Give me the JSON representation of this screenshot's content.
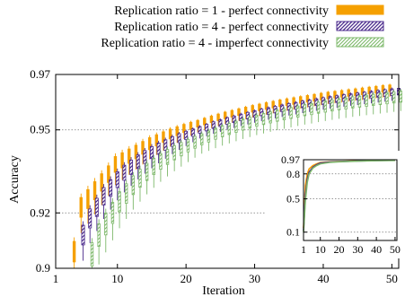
{
  "chart_data": [
    {
      "id": "main",
      "type": "box",
      "xlabel": "Iteration",
      "ylabel": "Accuracy",
      "xlim": [
        1,
        51
      ],
      "ylim": [
        0.9,
        0.97
      ],
      "xticks": [
        1,
        10,
        20,
        30,
        40,
        50
      ],
      "yticks": [
        0.9,
        0.92,
        0.95,
        0.97
      ],
      "ytick_labels": [
        "0.9",
        "0.92",
        "0.95",
        "0.97"
      ],
      "grid": "horizontal-dashed",
      "legend": "top-outside",
      "series": [
        {
          "name": "Replication ratio = 1 - perfect connectivity",
          "color": "#F5A000",
          "pattern": "solid",
          "x": [
            4,
            5,
            6,
            7,
            8,
            9,
            10,
            11,
            12,
            13,
            14,
            15,
            16,
            17,
            18,
            19,
            20,
            21,
            22,
            23,
            24,
            25,
            26,
            27,
            28,
            29,
            30,
            31,
            32,
            33,
            34,
            35,
            36,
            37,
            38,
            39,
            40,
            41,
            42,
            43,
            44,
            45,
            46,
            47,
            48,
            49,
            50
          ],
          "median": [
            0.906,
            0.922,
            0.925,
            0.928,
            0.931,
            0.934,
            0.9375,
            0.939,
            0.9405,
            0.942,
            0.9435,
            0.945,
            0.9462,
            0.9474,
            0.9485,
            0.9495,
            0.9505,
            0.9514,
            0.9522,
            0.953,
            0.9538,
            0.9545,
            0.9552,
            0.9558,
            0.9564,
            0.957,
            0.9576,
            0.9581,
            0.9586,
            0.9591,
            0.9596,
            0.96,
            0.9604,
            0.9608,
            0.9612,
            0.9616,
            0.962,
            0.9624,
            0.9627,
            0.963,
            0.9633,
            0.9636,
            0.9639,
            0.9642,
            0.9645,
            0.9648,
            0.965
          ]
        },
        {
          "name": "Replication ratio = 4 - perfect connectivity",
          "color": "#4B2A8C",
          "pattern": "hatch",
          "x": [
            5,
            6,
            7,
            8,
            9,
            10,
            11,
            12,
            13,
            14,
            15,
            16,
            17,
            18,
            19,
            20,
            21,
            22,
            23,
            24,
            25,
            26,
            27,
            28,
            29,
            30,
            31,
            32,
            33,
            34,
            35,
            36,
            37,
            38,
            39,
            40,
            41,
            42,
            43,
            44,
            45,
            46,
            47,
            48,
            49,
            50,
            51
          ],
          "median": [
            0.912,
            0.918,
            0.922,
            0.926,
            0.929,
            0.932,
            0.9345,
            0.9365,
            0.9385,
            0.9402,
            0.9418,
            0.9432,
            0.9445,
            0.9458,
            0.947,
            0.948,
            0.949,
            0.95,
            0.9508,
            0.9517,
            0.9524,
            0.9532,
            0.9538,
            0.9545,
            0.9551,
            0.9557,
            0.9563,
            0.9568,
            0.9573,
            0.9578,
            0.9583,
            0.9587,
            0.9592,
            0.9596,
            0.96,
            0.9604,
            0.9608,
            0.9611,
            0.9615,
            0.9618,
            0.9621,
            0.9624,
            0.9627,
            0.963,
            0.9633,
            0.9636,
            0.9638
          ]
        },
        {
          "name": "Replication ratio = 4 - imperfect connectivity",
          "color": "#7DB86A",
          "pattern": "hatch-light",
          "x": [
            6,
            7,
            8,
            9,
            10,
            11,
            12,
            13,
            14,
            15,
            16,
            17,
            18,
            19,
            20,
            21,
            22,
            23,
            24,
            25,
            26,
            27,
            28,
            29,
            30,
            31,
            32,
            33,
            34,
            35,
            36,
            37,
            38,
            39,
            40,
            41,
            42,
            43,
            44,
            45,
            46,
            47,
            48,
            49,
            50,
            51
          ],
          "median": [
            0.905,
            0.912,
            0.916,
            0.92,
            0.924,
            0.927,
            0.93,
            0.9325,
            0.9348,
            0.9368,
            0.9386,
            0.9402,
            0.9417,
            0.943,
            0.9443,
            0.9455,
            0.9466,
            0.9476,
            0.9486,
            0.9495,
            0.9503,
            0.9511,
            0.9519,
            0.9526,
            0.9533,
            0.9539,
            0.9545,
            0.9551,
            0.9556,
            0.9561,
            0.9566,
            0.9571,
            0.9575,
            0.958,
            0.9584,
            0.9588,
            0.9592,
            0.9595,
            0.9599,
            0.9602,
            0.9605,
            0.9608,
            0.9611,
            0.9614,
            0.9617,
            0.962
          ]
        }
      ]
    },
    {
      "id": "inset",
      "type": "line",
      "xlim": [
        1,
        51
      ],
      "ylim": [
        0.0,
        0.97
      ],
      "xticks": [
        1,
        10,
        20,
        30,
        40,
        50
      ],
      "yticks": [
        0.1,
        0.5,
        0.8,
        0.97
      ],
      "ytick_labels": [
        "0.1",
        "0.5",
        "0.8",
        "0.97"
      ],
      "grid": "horizontal-dashed",
      "series": [
        {
          "color": "#F5A000",
          "x": [
            1,
            2,
            3,
            4,
            6,
            8,
            10,
            15,
            20,
            30,
            40,
            50
          ],
          "y": [
            0.15,
            0.66,
            0.8,
            0.86,
            0.9,
            0.92,
            0.935,
            0.945,
            0.95,
            0.957,
            0.962,
            0.965
          ]
        },
        {
          "color": "#4B2A8C",
          "x": [
            1,
            2,
            3,
            4,
            6,
            8,
            10,
            15,
            20,
            30,
            40,
            50
          ],
          "y": [
            0.12,
            0.55,
            0.74,
            0.82,
            0.88,
            0.91,
            0.93,
            0.942,
            0.948,
            0.955,
            0.96,
            0.963
          ]
        },
        {
          "color": "#7DB86A",
          "x": [
            1,
            2,
            3,
            4,
            6,
            8,
            10,
            15,
            20,
            30,
            40,
            50
          ],
          "y": [
            0.1,
            0.48,
            0.7,
            0.8,
            0.87,
            0.9,
            0.92,
            0.938,
            0.945,
            0.953,
            0.958,
            0.961
          ]
        }
      ]
    }
  ]
}
